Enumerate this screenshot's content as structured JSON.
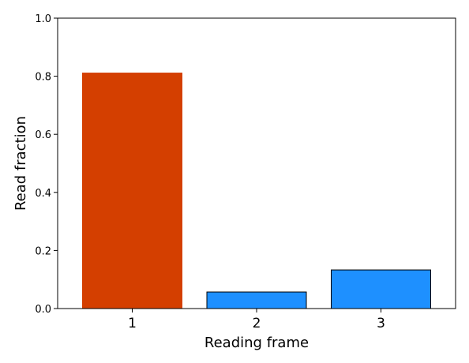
{
  "chart_data": {
    "type": "bar",
    "title": "",
    "xlabel": "Reading frame",
    "ylabel": "Read fraction",
    "categories": [
      "1",
      "2",
      "3"
    ],
    "values": [
      0.811,
      0.057,
      0.133
    ],
    "ylim": [
      0,
      1.0
    ],
    "yticks": [
      0.0,
      0.2,
      0.4,
      0.6,
      0.8,
      1.0
    ],
    "ytick_labels": [
      "0.0",
      "0.2",
      "0.4",
      "0.6",
      "0.8",
      "1.0"
    ],
    "bar_colors": [
      "#d43f00",
      "#1e90ff",
      "#1e90ff"
    ],
    "bar_edge_colors": [
      "#d43f00",
      "#000000",
      "#000000"
    ],
    "grid": false,
    "legend": "none"
  }
}
